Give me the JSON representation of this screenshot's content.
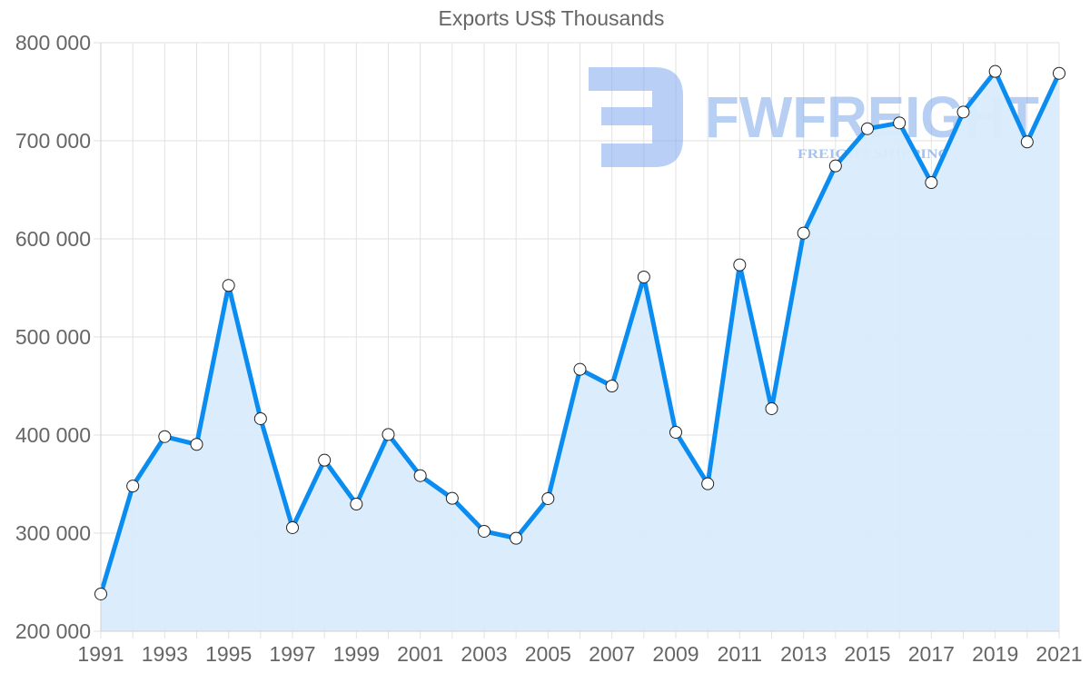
{
  "chart_data": {
    "type": "line",
    "title": "Exports US$ Thousands",
    "xlabel": "",
    "ylabel": "",
    "x": [
      1991,
      1992,
      1993,
      1994,
      1995,
      1996,
      1997,
      1998,
      1999,
      2000,
      2001,
      2002,
      2003,
      2004,
      2005,
      2006,
      2007,
      2008,
      2009,
      2010,
      2011,
      2012,
      2013,
      2014,
      2015,
      2016,
      2017,
      2018,
      2019,
      2020,
      2021
    ],
    "series": [
      {
        "name": "Exports US$ Thousands",
        "values": [
          238000,
          348000,
          398400,
          390500,
          552500,
          416700,
          305600,
          374400,
          329600,
          400600,
          358600,
          335500,
          301900,
          294800,
          335200,
          467000,
          450000,
          561100,
          402800,
          350300,
          573500,
          426900,
          605900,
          674400,
          712300,
          718200,
          657400,
          729300,
          770700,
          698800,
          768800
        ]
      }
    ],
    "ylim": [
      200000,
      800000
    ],
    "yticks": [
      200000,
      300000,
      400000,
      500000,
      600000,
      700000,
      800000
    ],
    "ytick_labels": [
      "200 000",
      "300 000",
      "400 000",
      "500 000",
      "600 000",
      "700 000",
      "800 000"
    ],
    "xtick_labels": [
      "1991",
      "1993",
      "1995",
      "1997",
      "1999",
      "2001",
      "2003",
      "2005",
      "2007",
      "2009",
      "2011",
      "2013",
      "2015",
      "2017",
      "2019",
      "2021"
    ],
    "grid": true,
    "filled_area": true,
    "legend": "none",
    "colors": {
      "line": "#0a8cf0",
      "fill": "#d9ecfc",
      "point_fill": "#ffffff",
      "point_stroke": "#222222",
      "grid": "#e2e2e2",
      "text": "#666666"
    }
  },
  "watermark": {
    "brand": "FWFREIGHT",
    "tagline": "FREIGHT SHIPPING",
    "color": "#7fa8ec"
  }
}
